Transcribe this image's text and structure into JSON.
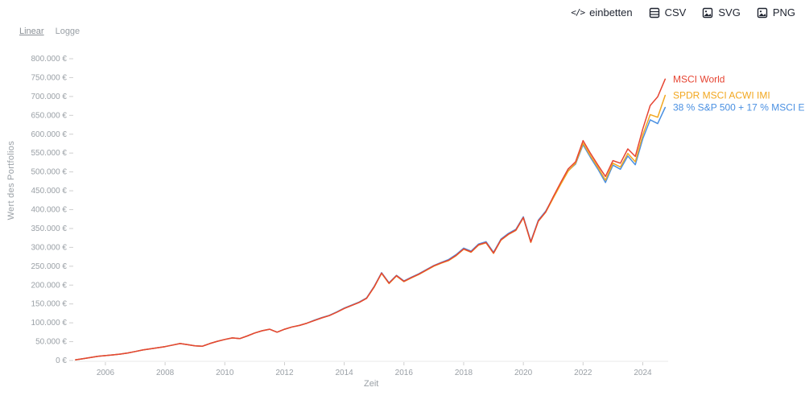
{
  "toolbar": {
    "embed_label": "einbetten",
    "embed_glyph": "</>",
    "export_buttons": [
      {
        "label": "CSV",
        "icon": "csv-table-icon"
      },
      {
        "label": "SVG",
        "icon": "svg-image-icon"
      },
      {
        "label": "PNG",
        "icon": "png-image-icon"
      }
    ]
  },
  "scale_toggle": {
    "options": [
      {
        "label": "Linear",
        "active": true
      },
      {
        "label": "Logge",
        "active": false
      }
    ]
  },
  "chart_data": {
    "type": "line",
    "title": "",
    "xlabel": "Zeit",
    "ylabel": "Wert des Portfolios",
    "ylim": [
      0,
      800000
    ],
    "ytick_step": 50000,
    "ytick_labels": [
      "0 €",
      "50.000 €",
      "100.000 €",
      "150.000 €",
      "200.000 €",
      "250.000 €",
      "300.000 €",
      "350.000 €",
      "400.000 €",
      "450.000 €",
      "500.000 €",
      "550.000 €",
      "600.000 €",
      "650.000 €",
      "700.000 €",
      "750.000 €",
      "800.000 €"
    ],
    "xlim": [
      2004.95,
      2024.85
    ],
    "xticks": [
      2006,
      2008,
      2010,
      2012,
      2014,
      2016,
      2018,
      2020,
      2022,
      2024
    ],
    "grid": false,
    "legend_position": "line-end-labels",
    "x": [
      2005,
      2005.25,
      2005.5,
      2005.75,
      2006,
      2006.25,
      2006.5,
      2006.75,
      2007,
      2007.25,
      2007.5,
      2007.75,
      2008,
      2008.25,
      2008.5,
      2008.75,
      2009,
      2009.25,
      2009.5,
      2009.75,
      2010,
      2010.25,
      2010.5,
      2010.75,
      2011,
      2011.25,
      2011.5,
      2011.75,
      2012,
      2012.25,
      2012.5,
      2012.75,
      2013,
      2013.25,
      2013.5,
      2013.75,
      2014,
      2014.25,
      2014.5,
      2014.75,
      2015,
      2015.25,
      2015.5,
      2015.75,
      2016,
      2016.25,
      2016.5,
      2016.75,
      2017,
      2017.25,
      2017.5,
      2017.75,
      2018,
      2018.25,
      2018.5,
      2018.75,
      2019,
      2019.25,
      2019.5,
      2019.75,
      2020,
      2020.25,
      2020.5,
      2020.75,
      2021,
      2021.25,
      2021.5,
      2021.75,
      2022,
      2022.25,
      2022.5,
      2022.75,
      2023,
      2023.25,
      2023.5,
      2023.75,
      2024,
      2024.25,
      2024.5,
      2024.75
    ],
    "series": [
      {
        "name": "MSCI World",
        "color": "#e64533",
        "values": [
          2000,
          5000,
          8000,
          11000,
          13000,
          15000,
          17000,
          20000,
          24000,
          28000,
          31000,
          34000,
          37000,
          41000,
          45000,
          42000,
          39000,
          38000,
          45000,
          51000,
          56000,
          60000,
          58000,
          65000,
          73000,
          79000,
          83000,
          75000,
          83000,
          89000,
          93000,
          99000,
          106000,
          113000,
          119000,
          128000,
          138000,
          146000,
          154000,
          165000,
          195000,
          232000,
          205000,
          225000,
          210000,
          220000,
          229000,
          240000,
          251000,
          259000,
          266000,
          279000,
          296000,
          288000,
          307000,
          313000,
          285000,
          320000,
          335000,
          346000,
          379000,
          314000,
          370000,
          394000,
          434000,
          472000,
          508000,
          527000,
          583000,
          549000,
          518000,
          488000,
          530000,
          523000,
          561000,
          541000,
          614000,
          676000,
          699000,
          746000
        ]
      },
      {
        "name": "SPDR MSCI ACWI IMI",
        "color": "#f2a71f",
        "values": [
          2000,
          5000,
          8000,
          11000,
          13000,
          15000,
          17000,
          20000,
          24000,
          28000,
          31000,
          34000,
          37000,
          41000,
          45000,
          42000,
          39000,
          38000,
          45000,
          51000,
          56000,
          60000,
          58000,
          65000,
          73000,
          79000,
          83000,
          75000,
          83000,
          89000,
          93000,
          99000,
          106000,
          113000,
          119000,
          128000,
          138000,
          146000,
          154000,
          165000,
          194000,
          231000,
          204000,
          224000,
          209000,
          219000,
          228000,
          239000,
          250000,
          258000,
          265000,
          278000,
          295000,
          287000,
          306000,
          312000,
          284000,
          319000,
          334000,
          345000,
          378000,
          313000,
          369000,
          393000,
          430000,
          467000,
          502000,
          523000,
          576000,
          542000,
          512000,
          478000,
          523000,
          513000,
          549000,
          527000,
          598000,
          652000,
          645000,
          703000
        ]
      },
      {
        "name": "38 % S&P 500 + 17 % MSCI E…",
        "color": "#4a90e2",
        "values": [
          2000,
          5000,
          8000,
          11000,
          13000,
          15000,
          17000,
          20000,
          24000,
          28000,
          31000,
          34000,
          37000,
          41000,
          45000,
          42000,
          39000,
          38000,
          45000,
          51000,
          56000,
          60000,
          58000,
          65000,
          73000,
          79000,
          83000,
          75000,
          83000,
          89000,
          93000,
          99000,
          107000,
          114000,
          120000,
          129000,
          139000,
          147000,
          155000,
          166000,
          196000,
          233000,
          206000,
          226000,
          211000,
          221000,
          230000,
          241000,
          252000,
          260000,
          268000,
          281000,
          298000,
          290000,
          309000,
          315000,
          287000,
          322000,
          337000,
          348000,
          381000,
          316000,
          372000,
          396000,
          432000,
          468000,
          503000,
          521000,
          572000,
          538000,
          507000,
          472000,
          518000,
          507000,
          542000,
          519000,
          588000,
          638000,
          628000,
          671000
        ]
      }
    ]
  }
}
